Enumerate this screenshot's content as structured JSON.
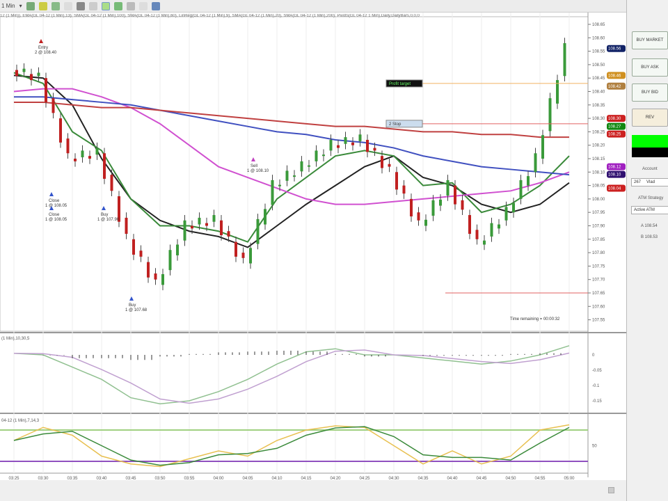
{
  "toolbar": {
    "interval": "1 Min",
    "interval_icon": "chevron-down-icon"
  },
  "indicator_label": "12 (1 Min)), EMA(GL 04-12 (1 Min),13), SMA(GL 04-12 (1 Min),100), SMA(GL 04-12 (1 Min),60), LinReg(GL 04-12 (1 Min),9), SMA(GL 04-12 (1 Min),20), SMA(GL 04-12 (1 Min),200), Pivots(GL 04-12 1 Min),Daily,DailyBars,0,0,0",
  "price_axis": {
    "ticks": [
      "108.65",
      "108.60",
      "108.55",
      "108.50",
      "108.45",
      "108.40",
      "108.35",
      "108.30",
      "108.25",
      "108.20",
      "108.15",
      "108.10",
      "108.05",
      "108.00",
      "107.95",
      "107.90",
      "107.85",
      "107.80",
      "107.75",
      "107.70",
      "107.65",
      "107.60",
      "107.55"
    ],
    "max": 108.67,
    "min": 107.53
  },
  "time_axis": {
    "ticks": [
      "03:25",
      "03:30",
      "03:35",
      "03:40",
      "03:45",
      "03:50",
      "03:55",
      "04:00",
      "04:05",
      "04:10",
      "04:15",
      "04:20",
      "04:25",
      "04:30",
      "04:35",
      "04:40",
      "04:45",
      "04:50",
      "04:55",
      "05:00"
    ]
  },
  "price_series": {
    "close": [
      108.48,
      108.45,
      108.15,
      108.17,
      107.85,
      107.68,
      107.9,
      107.92,
      107.76,
      108.05,
      108.12,
      108.2,
      108.22,
      108.1,
      107.9,
      108.05,
      107.83,
      107.95,
      108.15,
      108.56
    ],
    "lines": [
      {
        "color": "#222222",
        "values": [
          108.46,
          108.45,
          108.35,
          108.15,
          108.0,
          107.92,
          107.88,
          107.86,
          107.82,
          107.9,
          107.98,
          108.05,
          108.12,
          108.16,
          108.08,
          108.05,
          107.98,
          107.95,
          107.98,
          108.06
        ]
      },
      {
        "color": "#3a8a3a",
        "values": [
          108.47,
          108.43,
          108.25,
          108.18,
          108.0,
          107.9,
          107.9,
          107.88,
          107.84,
          108.0,
          108.08,
          108.16,
          108.18,
          108.16,
          108.05,
          108.06,
          107.95,
          107.98,
          108.05,
          108.16
        ]
      },
      {
        "color": "#d050d0",
        "values": [
          108.4,
          108.41,
          108.41,
          108.38,
          108.34,
          108.28,
          108.2,
          108.12,
          108.08,
          108.04,
          108.0,
          107.98,
          107.98,
          107.99,
          108.0,
          108.01,
          108.02,
          108.03,
          108.06,
          108.1
        ]
      },
      {
        "color": "#4050c0",
        "values": [
          108.38,
          108.38,
          108.37,
          108.36,
          108.35,
          108.33,
          108.31,
          108.29,
          108.27,
          108.25,
          108.24,
          108.22,
          108.21,
          108.19,
          108.16,
          108.14,
          108.12,
          108.11,
          108.1,
          108.09
        ]
      },
      {
        "color": "#c04040",
        "values": [
          108.36,
          108.36,
          108.35,
          108.34,
          108.34,
          108.33,
          108.32,
          108.31,
          108.3,
          108.29,
          108.28,
          108.27,
          108.27,
          108.26,
          108.25,
          108.25,
          108.24,
          108.24,
          108.23,
          108.23
        ]
      }
    ]
  },
  "orders": [
    {
      "price": 108.43,
      "color": "#f0b060",
      "label": "Profit target"
    },
    {
      "price": 108.28,
      "color": "#e06060",
      "label": "2 Stop"
    },
    {
      "price": 107.65,
      "color": "#e06060",
      "label": ""
    }
  ],
  "executions": [
    {
      "title": "Entry",
      "text": "2 @ 108.40"
    },
    {
      "title": "Close",
      "text": "1 @ 108.05"
    },
    {
      "title": "Close",
      "text": "1 @ 108.05"
    },
    {
      "title": "Buy",
      "text": "1 @ 107.68"
    },
    {
      "title": "Buy",
      "text": "1 @ 107.90"
    },
    {
      "title": "Sell",
      "text": "1 @ 108.10"
    }
  ],
  "time_remaining": "Time remaining = 00:00:32",
  "macd": {
    "label": "(1 Min),10,30,5",
    "ticks": [
      "0",
      "-0.05",
      "-0.1",
      "-0.15"
    ],
    "colors": [
      "#90c090",
      "#c0a0d0",
      "#333333"
    ]
  },
  "stoch": {
    "label": "04-12 (1 Min),7,14,3",
    "ticks": [
      "50"
    ],
    "colors": [
      "#e8c050",
      "#3a8a3a",
      "#9050c0"
    ]
  },
  "panel": {
    "buy_market": "BUY MARKET",
    "buy_ask": "BUY ASK",
    "buy_bid": "BUY BID",
    "rev": "REV",
    "account_label": "Account",
    "account_value": "267",
    "account_name": "Vlad",
    "atm_label": "ATM Strategy",
    "atm_value": "Active ATM",
    "ask": "A 108.54",
    "bid": "B 108.53",
    "accent": "#00ff00"
  }
}
